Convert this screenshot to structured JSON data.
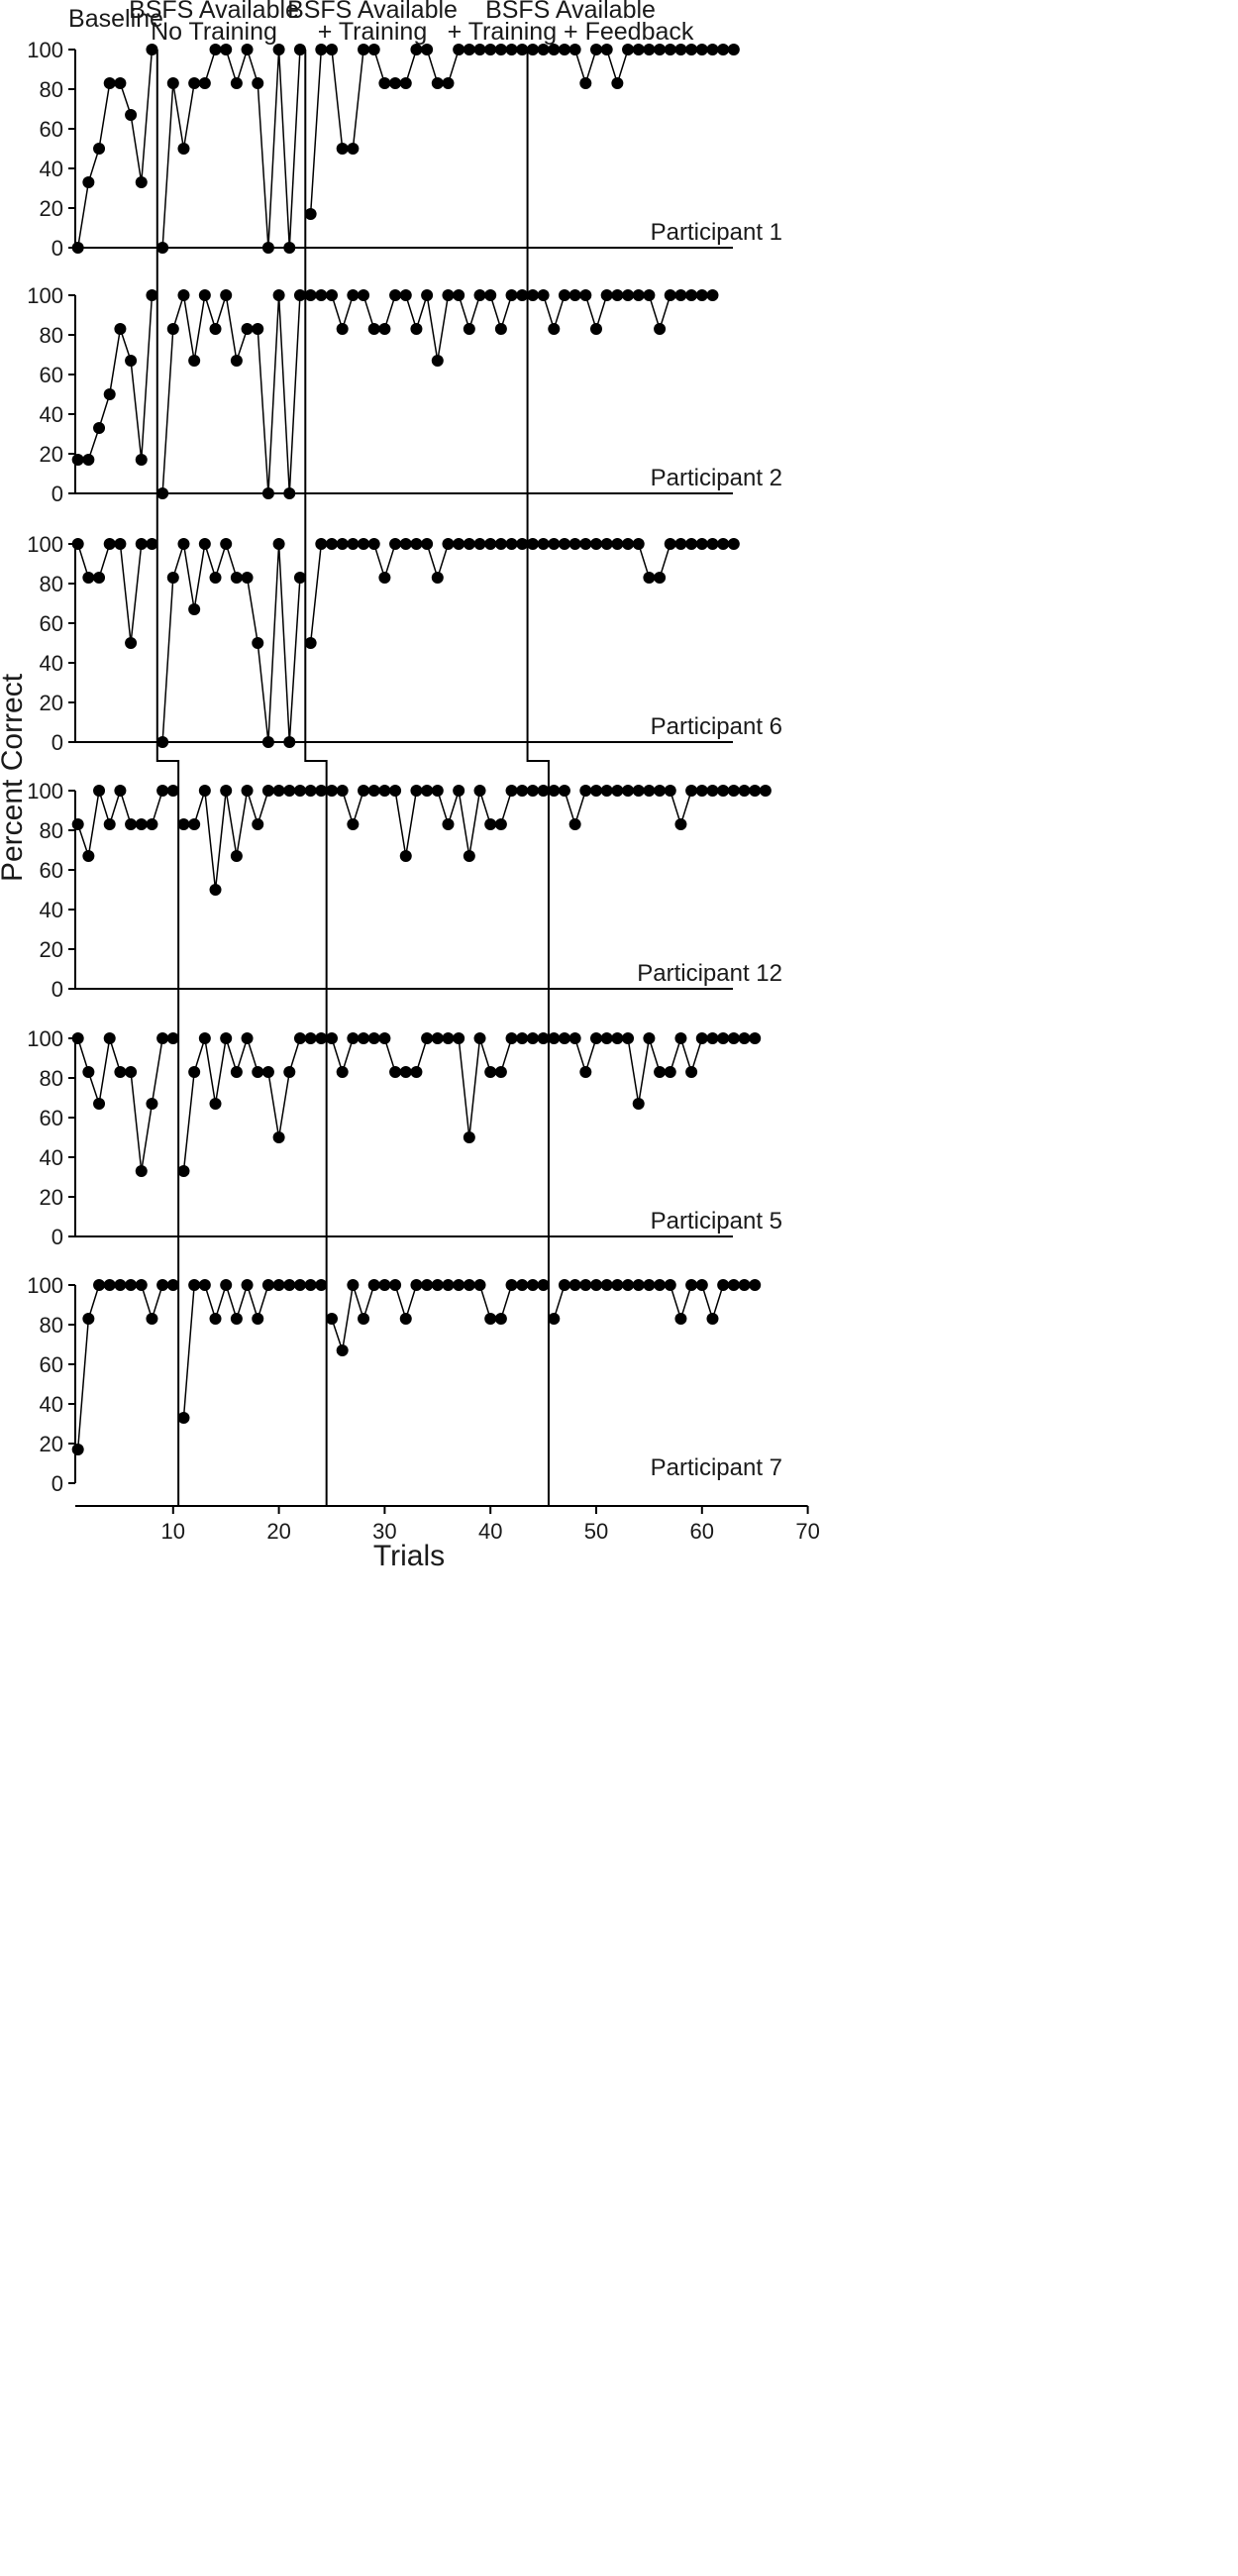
{
  "chart_data": {
    "type": "scatter",
    "phases": [
      "Baseline",
      "BSFS Available\nNo Training",
      "BSFS Available\n+ Training",
      "BSFS Available\n+ Training + Feedback"
    ],
    "ylabel": "Percent Correct",
    "xlabel": "Trials",
    "xlim": [
      0,
      70
    ],
    "ylim": [
      0,
      100
    ],
    "xticks": [
      10,
      20,
      30,
      40,
      50,
      60,
      70
    ],
    "yticks": [
      0,
      20,
      40,
      60,
      80,
      100
    ],
    "phase_changes": [
      [
        8,
        22,
        43
      ],
      [
        8,
        22,
        43
      ],
      [
        8,
        22,
        43
      ],
      [
        10,
        24,
        45
      ],
      [
        10,
        24,
        45
      ],
      [
        10,
        24,
        45
      ]
    ],
    "series": [
      {
        "name": "Participant 1",
        "values": [
          0,
          33,
          50,
          83,
          83,
          67,
          33,
          100,
          0,
          83,
          50,
          83,
          83,
          100,
          100,
          83,
          100,
          83,
          0,
          100,
          0,
          100,
          17,
          100,
          100,
          50,
          50,
          100,
          100,
          83,
          83,
          83,
          100,
          100,
          83,
          83,
          100,
          100,
          100,
          100,
          100,
          100,
          100,
          100,
          100,
          100,
          100,
          100,
          83,
          100,
          100,
          83,
          100,
          100,
          100,
          100,
          100,
          100,
          100,
          100,
          100,
          100,
          100
        ]
      },
      {
        "name": "Participant 2",
        "values": [
          17,
          17,
          33,
          50,
          83,
          67,
          17,
          100,
          0,
          83,
          100,
          67,
          100,
          83,
          100,
          67,
          83,
          83,
          0,
          100,
          0,
          100,
          100,
          100,
          100,
          83,
          100,
          100,
          83,
          83,
          100,
          100,
          83,
          100,
          67,
          100,
          100,
          83,
          100,
          100,
          83,
          100,
          100,
          100,
          100,
          83,
          100,
          100,
          100,
          83,
          100,
          100,
          100,
          100,
          100,
          83,
          100,
          100,
          100,
          100,
          100
        ]
      },
      {
        "name": "Participant 6",
        "values": [
          100,
          83,
          83,
          100,
          100,
          50,
          100,
          100,
          0,
          83,
          100,
          67,
          100,
          83,
          100,
          83,
          83,
          50,
          0,
          100,
          0,
          83,
          50,
          100,
          100,
          100,
          100,
          100,
          100,
          83,
          100,
          100,
          100,
          100,
          83,
          100,
          100,
          100,
          100,
          100,
          100,
          100,
          100,
          100,
          100,
          100,
          100,
          100,
          100,
          100,
          100,
          100,
          100,
          100,
          83,
          83,
          100,
          100,
          100,
          100,
          100,
          100,
          100
        ]
      },
      {
        "name": "Participant 12",
        "values": [
          83,
          67,
          100,
          83,
          100,
          83,
          83,
          83,
          100,
          100,
          83,
          83,
          100,
          50,
          100,
          67,
          100,
          83,
          100,
          100,
          100,
          100,
          100,
          100,
          100,
          100,
          83,
          100,
          100,
          100,
          100,
          67,
          100,
          100,
          100,
          83,
          100,
          67,
          100,
          83,
          83,
          100,
          100,
          100,
          100,
          100,
          100,
          83,
          100,
          100,
          100,
          100,
          100,
          100,
          100,
          100,
          100,
          83,
          100,
          100,
          100,
          100,
          100,
          100,
          100,
          100
        ]
      },
      {
        "name": "Participant 5",
        "values": [
          100,
          83,
          67,
          100,
          83,
          83,
          33,
          67,
          100,
          100,
          33,
          83,
          100,
          67,
          100,
          83,
          100,
          83,
          83,
          50,
          83,
          100,
          100,
          100,
          100,
          83,
          100,
          100,
          100,
          100,
          83,
          83,
          83,
          100,
          100,
          100,
          100,
          50,
          100,
          83,
          83,
          100,
          100,
          100,
          100,
          100,
          100,
          100,
          83,
          100,
          100,
          100,
          100,
          67,
          100,
          83,
          83,
          100,
          83,
          100,
          100,
          100,
          100,
          100,
          100
        ]
      },
      {
        "name": "Participant 7",
        "values": [
          17,
          83,
          100,
          100,
          100,
          100,
          100,
          83,
          100,
          100,
          33,
          100,
          100,
          83,
          100,
          83,
          100,
          83,
          100,
          100,
          100,
          100,
          100,
          100,
          83,
          67,
          100,
          83,
          100,
          100,
          100,
          83,
          100,
          100,
          100,
          100,
          100,
          100,
          100,
          83,
          83,
          100,
          100,
          100,
          100,
          83,
          100,
          100,
          100,
          100,
          100,
          100,
          100,
          100,
          100,
          100,
          100,
          83,
          100,
          100,
          83,
          100,
          100,
          100,
          100
        ]
      }
    ]
  }
}
